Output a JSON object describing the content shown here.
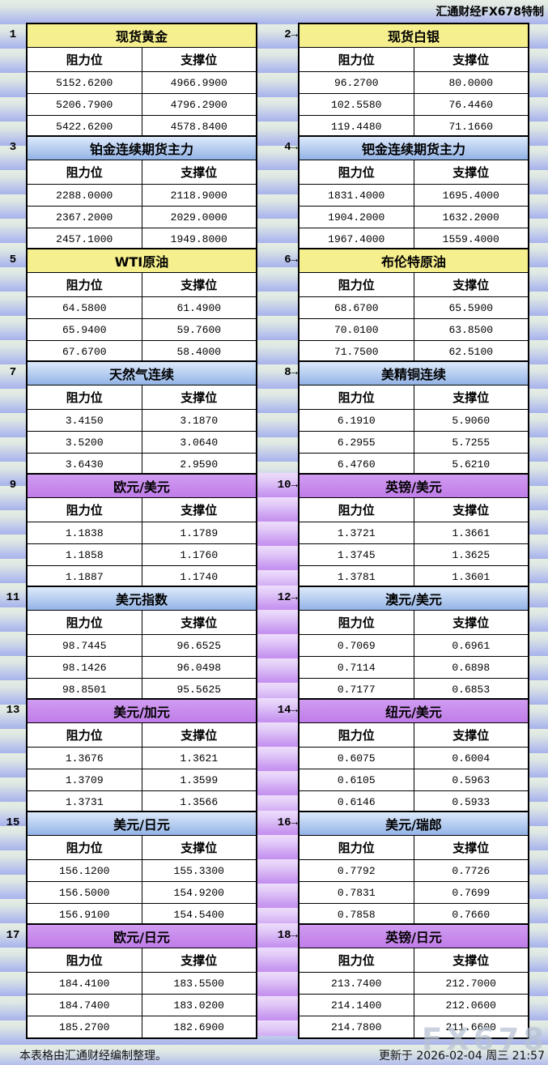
{
  "brand": "汇通财经FX678特制",
  "labels": {
    "resistance": "阻力位",
    "support": "支撑位",
    "arrow": "→"
  },
  "panels": [
    {
      "num": "1",
      "title": "现货黄金",
      "style": "yellow",
      "resistance": [
        "5152.6200",
        "5206.7900",
        "5422.6200"
      ],
      "support": [
        "4966.9900",
        "4796.2900",
        "4578.8400"
      ]
    },
    {
      "num": "2",
      "title": "现货白银",
      "style": "yellow",
      "resistance": [
        "96.2700",
        "102.5580",
        "119.4480"
      ],
      "support": [
        "80.0000",
        "76.4460",
        "71.1660"
      ]
    },
    {
      "num": "3",
      "title": "铂金连续期货主力",
      "style": "blue",
      "resistance": [
        "2288.0000",
        "2367.2000",
        "2457.1000"
      ],
      "support": [
        "2118.9000",
        "2029.0000",
        "1949.8000"
      ]
    },
    {
      "num": "4",
      "title": "钯金连续期货主力",
      "style": "blue",
      "resistance": [
        "1831.4000",
        "1904.2000",
        "1967.4000"
      ],
      "support": [
        "1695.4000",
        "1632.2000",
        "1559.4000"
      ]
    },
    {
      "num": "5",
      "title": "WTI原油",
      "style": "yellow",
      "resistance": [
        "64.5800",
        "65.9400",
        "67.6700"
      ],
      "support": [
        "61.4900",
        "59.7600",
        "58.4000"
      ]
    },
    {
      "num": "6",
      "title": "布伦特原油",
      "style": "yellow",
      "resistance": [
        "68.6700",
        "70.0100",
        "71.7500"
      ],
      "support": [
        "65.5900",
        "63.8500",
        "62.5100"
      ]
    },
    {
      "num": "7",
      "title": "天然气连续",
      "style": "blue",
      "resistance": [
        "3.4150",
        "3.5200",
        "3.6430"
      ],
      "support": [
        "3.1870",
        "3.0640",
        "2.9590"
      ]
    },
    {
      "num": "8",
      "title": "美精铜连续",
      "style": "blue",
      "resistance": [
        "6.1910",
        "6.2955",
        "6.4760"
      ],
      "support": [
        "5.9060",
        "5.7255",
        "5.6210"
      ]
    },
    {
      "num": "9",
      "title": "欧元/美元",
      "style": "purple",
      "resistance": [
        "1.1838",
        "1.1858",
        "1.1887"
      ],
      "support": [
        "1.1789",
        "1.1760",
        "1.1740"
      ]
    },
    {
      "num": "10",
      "title": "英镑/美元",
      "style": "purple",
      "resistance": [
        "1.3721",
        "1.3745",
        "1.3781"
      ],
      "support": [
        "1.3661",
        "1.3625",
        "1.3601"
      ]
    },
    {
      "num": "11",
      "title": "美元指数",
      "style": "blue",
      "resistance": [
        "98.7445",
        "98.1426",
        "98.8501"
      ],
      "support": [
        "96.6525",
        "96.0498",
        "95.5625"
      ]
    },
    {
      "num": "12",
      "title": "澳元/美元",
      "style": "blue",
      "resistance": [
        "0.7069",
        "0.7114",
        "0.7177"
      ],
      "support": [
        "0.6961",
        "0.6898",
        "0.6853"
      ]
    },
    {
      "num": "13",
      "title": "美元/加元",
      "style": "purple",
      "resistance": [
        "1.3676",
        "1.3709",
        "1.3731"
      ],
      "support": [
        "1.3621",
        "1.3599",
        "1.3566"
      ]
    },
    {
      "num": "14",
      "title": "纽元/美元",
      "style": "purple",
      "resistance": [
        "0.6075",
        "0.6105",
        "0.6146"
      ],
      "support": [
        "0.6004",
        "0.5963",
        "0.5933"
      ]
    },
    {
      "num": "15",
      "title": "美元/日元",
      "style": "blue",
      "resistance": [
        "156.1200",
        "156.5000",
        "156.9100"
      ],
      "support": [
        "155.3300",
        "154.9200",
        "154.5400"
      ]
    },
    {
      "num": "16",
      "title": "美元/瑞郎",
      "style": "blue",
      "resistance": [
        "0.7792",
        "0.7831",
        "0.7858"
      ],
      "support": [
        "0.7726",
        "0.7699",
        "0.7660"
      ]
    },
    {
      "num": "17",
      "title": "欧元/日元",
      "style": "purple",
      "resistance": [
        "184.4100",
        "184.7400",
        "185.2700"
      ],
      "support": [
        "183.5500",
        "183.0200",
        "182.6900"
      ]
    },
    {
      "num": "18",
      "title": "英镑/日元",
      "style": "purple",
      "resistance": [
        "213.7400",
        "214.1400",
        "214.7800"
      ],
      "support": [
        "212.7000",
        "212.0600",
        "211.6600"
      ]
    }
  ],
  "footer": {
    "note": "本表格由汇通财经编制整理。",
    "updated": "更新于 2026-02-04 周三 21:57",
    "watermark": "FX678"
  },
  "colors": {
    "title_yellow": "#f6ef8d",
    "title_blue": "#93b3e6",
    "title_purple": "#c07ce8",
    "stripe_green": "#e6eee3",
    "stripe_blue": "#a7b2ea",
    "gutter_purple": "#c48ff0"
  }
}
